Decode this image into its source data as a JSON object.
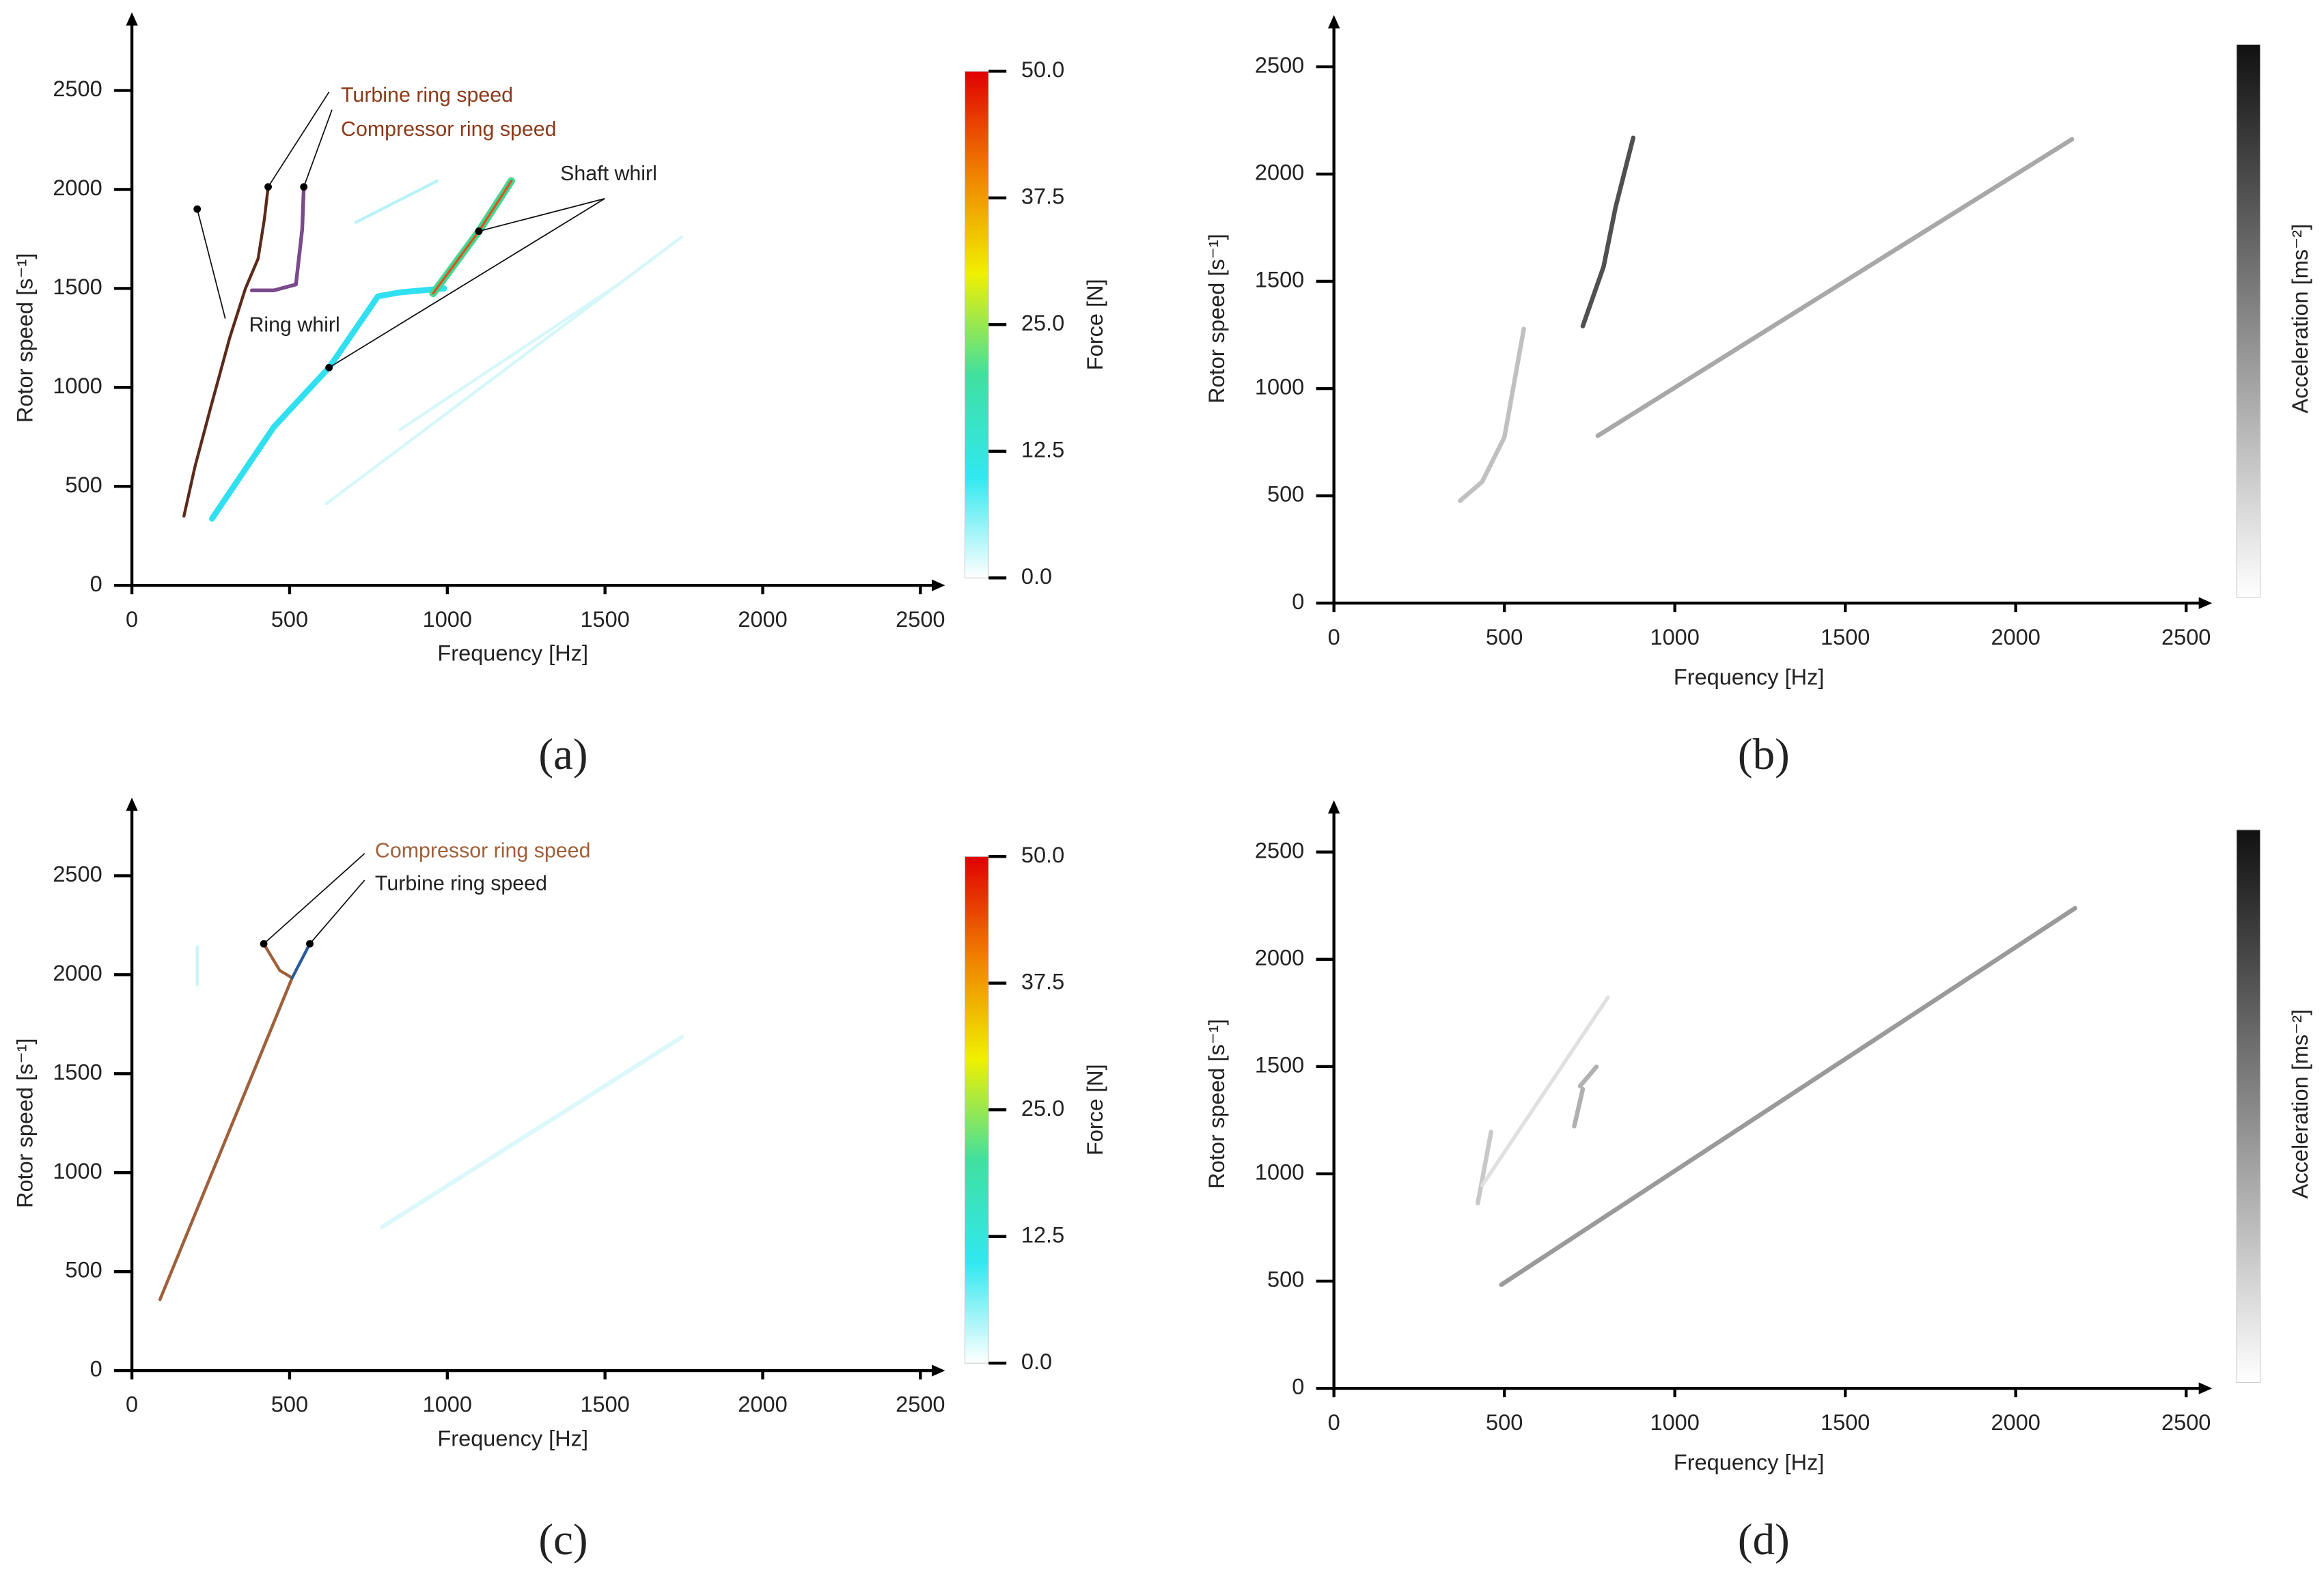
{
  "chart_data": [
    {
      "type": "line",
      "label": "(a)",
      "xlabel": "Frequency [Hz]",
      "ylabel": "Rotor speed [s⁻¹]",
      "xlim": [
        0,
        2550
      ],
      "ylim": [
        0,
        2850
      ],
      "xticks": [
        0,
        500,
        1000,
        1500,
        2000,
        2500
      ],
      "yticks": [
        0,
        500,
        1000,
        1500,
        2000,
        2500
      ],
      "colorbar": {
        "label": "Force [N]",
        "lim": [
          0,
          50
        ],
        "colors": [
          "#ffffff",
          "#30e8f0",
          "#40e0a0",
          "#f0f000",
          "#f08000",
          "#e00000"
        ],
        "ticks": [
          {
            "value": 0,
            "label": "0.0"
          },
          {
            "value": 12.5,
            "label": "12.5"
          },
          {
            "value": 25,
            "label": "25.0"
          },
          {
            "value": 37.5,
            "label": "37.5"
          },
          {
            "value": 50,
            "label": "50.0"
          }
        ]
      },
      "series": [
        {
          "color": "#d6f7fa",
          "linewidth": 2,
          "x": [
            616,
            1743
          ],
          "values": [
            412,
            1760
          ]
        },
        {
          "color": "#d6f7fa",
          "linewidth": 2,
          "x": [
            850,
            1555
          ],
          "values": [
            786,
            1534
          ]
        },
        {
          "color": "#b8f2f8",
          "linewidth": 2,
          "x": [
            710,
            968
          ],
          "values": [
            1834,
            2043
          ]
        },
        {
          "color": "#30e0f0",
          "linewidth": 4,
          "x": [
            254,
            450,
            625,
            780,
            850,
            990
          ],
          "values": [
            337,
            800,
            1100,
            1460,
            1480,
            1500
          ]
        },
        {
          "color": "#40d890",
          "linewidth": 5,
          "x": [
            955,
            1100,
            1203
          ],
          "values": [
            1475,
            1789,
            2043
          ]
        },
        {
          "color": "#e05020",
          "linewidth": 1.5,
          "x": [
            955,
            1100,
            1203
          ],
          "values": [
            1475,
            1789,
            2043
          ]
        },
        {
          "color": "#5a2a1a",
          "linewidth": 2,
          "x": [
            165,
            200,
            250,
            310,
            360,
            400,
            420,
            432
          ],
          "values": [
            350,
            600,
            900,
            1250,
            1500,
            1650,
            1850,
            2013
          ]
        },
        {
          "color": "#7b4a8a",
          "linewidth": 2.5,
          "x": [
            380,
            450,
            520,
            540,
            545
          ],
          "values": [
            1490,
            1490,
            1520,
            1800,
            2013
          ]
        }
      ],
      "annotations": [
        {
          "text": "Turbine ring speed",
          "color": "#8b3a1a",
          "points": [
            [
              432,
              2013
            ]
          ]
        },
        {
          "text": "Compressor ring speed",
          "color": "#8b3a1a",
          "points": [
            [
              545,
              2013
            ]
          ]
        },
        {
          "text": "Shaft whirl",
          "color": "#222222",
          "points": [
            [
              1100,
              1789
            ],
            [
              625,
              1100
            ]
          ]
        },
        {
          "text": "Ring whirl",
          "color": "#222222",
          "points": [
            [
              207,
              1901
            ]
          ]
        }
      ]
    },
    {
      "type": "line",
      "label": "(b)",
      "xlabel": "Frequency [Hz]",
      "ylabel": "Rotor speed [s⁻¹]",
      "xlim": [
        0,
        2550
      ],
      "ylim": [
        0,
        2700
      ],
      "xticks": [
        0,
        500,
        1000,
        1500,
        2000,
        2500
      ],
      "yticks": [
        0,
        500,
        1000,
        1500,
        2000,
        2500
      ],
      "colorbar": {
        "label": "Acceleration [ms⁻²]",
        "colors": [
          "#ffffff",
          "#111111"
        ]
      },
      "series": [
        {
          "color": "#c0c0c0",
          "linewidth": 3,
          "x": [
            370,
            435,
            500,
            557
          ],
          "values": [
            477,
            566,
            773,
            1278
          ]
        },
        {
          "color": "#505050",
          "linewidth": 3,
          "x": [
            730,
            791,
            826,
            878
          ],
          "values": [
            1291,
            1568,
            1844,
            2169
          ]
        },
        {
          "color": "#a8a8a8",
          "linewidth": 3,
          "x": [
            774,
            2165
          ],
          "values": [
            780,
            2162
          ]
        }
      ]
    },
    {
      "type": "line",
      "label": "(c)",
      "xlabel": "Frequency [Hz]",
      "ylabel": "Rotor speed [s⁻¹]",
      "xlim": [
        0,
        2550
      ],
      "ylim": [
        0,
        2850
      ],
      "xticks": [
        0,
        500,
        1000,
        1500,
        2000,
        2500
      ],
      "yticks": [
        0,
        500,
        1000,
        1500,
        2000,
        2500
      ],
      "colorbar": {
        "label": "Force [N]",
        "lim": [
          0,
          50
        ],
        "colors": [
          "#ffffff",
          "#30e8f0",
          "#40e0a0",
          "#f0f000",
          "#f08000",
          "#e00000"
        ],
        "ticks": [
          {
            "value": 0,
            "label": "0.0"
          },
          {
            "value": 12.5,
            "label": "12.5"
          },
          {
            "value": 25,
            "label": "25.0"
          },
          {
            "value": 37.5,
            "label": "37.5"
          },
          {
            "value": 50,
            "label": "50.0"
          }
        ]
      },
      "series": [
        {
          "color": "#dcf8fb",
          "linewidth": 3,
          "x": [
            794,
            1743
          ],
          "values": [
            726,
            1684
          ]
        },
        {
          "color": "#c8f4f8",
          "linewidth": 2,
          "x": [
            207,
            207
          ],
          "values": [
            1950,
            2140
          ]
        },
        {
          "color": "#333333",
          "linewidth": 2,
          "x": [
            89,
            508
          ],
          "values": [
            359,
            1984
          ]
        },
        {
          "color": "#a0603a",
          "linewidth": 2,
          "x": [
            89,
            508,
            469,
            418
          ],
          "values": [
            359,
            1984,
            2021,
            2156
          ]
        },
        {
          "color": "#2a5a9a",
          "linewidth": 2,
          "x": [
            508,
            564
          ],
          "values": [
            1984,
            2156
          ]
        }
      ],
      "annotations": [
        {
          "text": "Compressor ring speed",
          "color": "#a0603a",
          "points": [
            [
              418,
              2156
            ]
          ]
        },
        {
          "text": "Turbine ring speed",
          "color": "#222222",
          "points": [
            [
              564,
              2156
            ]
          ]
        }
      ]
    },
    {
      "type": "line",
      "label": "(d)",
      "xlabel": "Frequency [Hz]",
      "ylabel": "Rotor speed [s⁻¹]",
      "xlim": [
        0,
        2550
      ],
      "ylim": [
        0,
        2700
      ],
      "xticks": [
        0,
        500,
        1000,
        1500,
        2000,
        2500
      ],
      "yticks": [
        0,
        500,
        1000,
        1500,
        2000,
        2500
      ],
      "colorbar": {
        "label": "Acceleration [ms⁻²]",
        "colors": [
          "#ffffff",
          "#111111"
        ]
      },
      "series": [
        {
          "color": "#c8c8c8",
          "linewidth": 3,
          "x": [
            422,
            461
          ],
          "values": [
            863,
            1195
          ]
        },
        {
          "color": "#e0e0e0",
          "linewidth": 2.5,
          "x": [
            435,
            804
          ],
          "values": [
            946,
            1823
          ]
        },
        {
          "color": "#b0b0b0",
          "linewidth": 3,
          "x": [
            705,
            730
          ],
          "values": [
            1222,
            1395
          ]
        },
        {
          "color": "#b0b0b0",
          "linewidth": 3,
          "x": [
            722,
            770
          ],
          "values": [
            1409,
            1499
          ]
        },
        {
          "color": "#9a9a9a",
          "linewidth": 3,
          "x": [
            491,
            2174
          ],
          "values": [
            483,
            2238
          ]
        }
      ]
    }
  ]
}
